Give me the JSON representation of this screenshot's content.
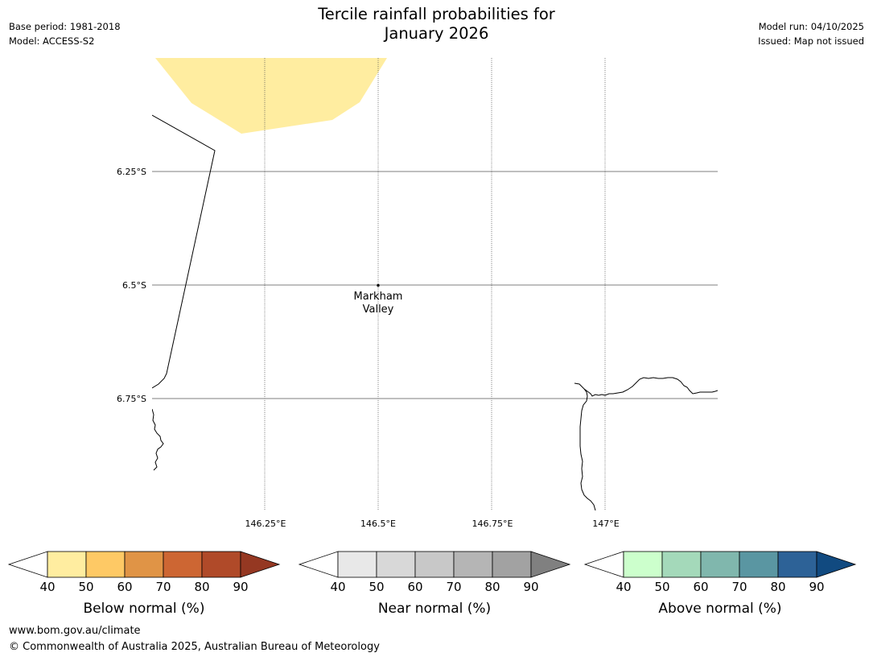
{
  "header": {
    "base_period": "Base period: 1981-2018",
    "model": "Model: ACCESS-S2",
    "model_run": "Model run: 04/10/2025",
    "issued": "Issued: Map not issued",
    "title_line1": "Tercile rainfall probabilities for",
    "title_line2": "January 2026"
  },
  "map": {
    "lat_labels": [
      "6.25°S",
      "6.5°S",
      "6.75°S"
    ],
    "lon_labels": [
      "146.25°E",
      "146.5°E",
      "146.75°E",
      "147°E"
    ],
    "place": {
      "name_line1": "Markham",
      "name_line2": "Valley"
    },
    "shade_color": "#ffeda0",
    "coast_color": "#000000",
    "grid_color": "#555555"
  },
  "legends": [
    {
      "label": "Below normal (%)",
      "ticks": [
        "40",
        "50",
        "60",
        "70",
        "80",
        "90"
      ],
      "colors": [
        "#ffeda0",
        "#fec965",
        "#e09446",
        "#cd6633",
        "#b04a29"
      ],
      "over_color": "#953822"
    },
    {
      "label": "Near normal (%)",
      "ticks": [
        "40",
        "50",
        "60",
        "70",
        "80",
        "90"
      ],
      "colors": [
        "#e8e8e8",
        "#d8d8d8",
        "#c8c8c8",
        "#b5b5b5",
        "#a2a2a2"
      ],
      "over_color": "#808080"
    },
    {
      "label": "Above normal (%)",
      "ticks": [
        "40",
        "50",
        "60",
        "70",
        "80",
        "90"
      ],
      "colors": [
        "#ccffcc",
        "#a4d9ba",
        "#80b7ad",
        "#5a96a2",
        "#2d6297"
      ],
      "over_color": "#114a80"
    }
  ],
  "footer": {
    "url": "www.bom.gov.au/climate",
    "copyright": "© Commonwealth of Australia 2025, Australian Bureau of Meteorology"
  }
}
